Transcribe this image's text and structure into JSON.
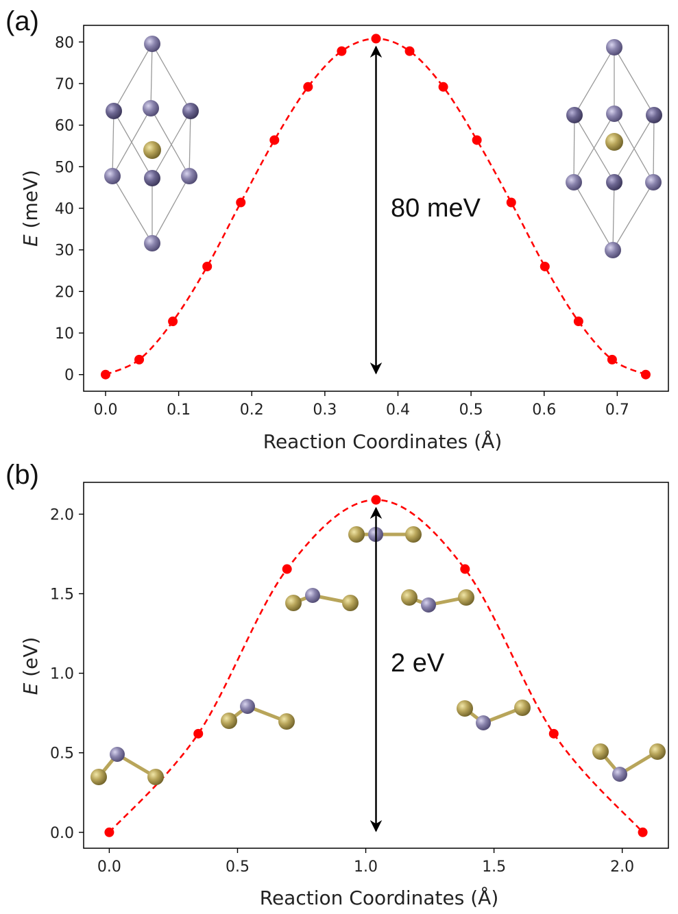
{
  "chart_data": [
    {
      "type": "line",
      "panel_label": "(a)",
      "xlabel": "Reaction Coordinates (Å)",
      "ylabel_italic": "E",
      "ylabel_rest": " (meV)",
      "xlim": [
        -0.03,
        0.77
      ],
      "ylim": [
        -4,
        84
      ],
      "xticks": [
        0.0,
        0.1,
        0.2,
        0.3,
        0.4,
        0.5,
        0.6,
        0.7
      ],
      "xtick_labels": [
        "0.0",
        "0.1",
        "0.2",
        "0.3",
        "0.4",
        "0.5",
        "0.6",
        "0.7"
      ],
      "yticks": [
        0,
        10,
        20,
        30,
        40,
        50,
        60,
        70,
        80
      ],
      "ytick_labels": [
        "0",
        "10",
        "20",
        "30",
        "40",
        "50",
        "60",
        "70",
        "80"
      ],
      "series": [
        {
          "color": "#ff0000",
          "style": "dashed-curve-with-markers",
          "x": [
            0.0,
            0.046,
            0.092,
            0.139,
            0.185,
            0.231,
            0.277,
            0.323,
            0.37,
            0.416,
            0.462,
            0.508,
            0.555,
            0.601,
            0.647,
            0.693,
            0.739
          ],
          "y": [
            0,
            3.6,
            12.8,
            26,
            41.4,
            56.4,
            69.2,
            77.8,
            80.8,
            77.8,
            69.2,
            56.4,
            41.4,
            26,
            12.8,
            3.6,
            0
          ]
        }
      ],
      "annotation": {
        "text": "80 meV",
        "arrow_x": 0.37,
        "arrow_from": 0,
        "arrow_to": 80.8
      }
    },
    {
      "type": "line",
      "panel_label": "(b)",
      "xlabel": "Reaction Coordinates (Å)",
      "ylabel_italic": "E",
      "ylabel_rest": " (eV)",
      "xlim": [
        -0.1,
        2.18
      ],
      "ylim": [
        -0.1,
        2.2
      ],
      "xticks": [
        0.0,
        0.5,
        1.0,
        1.5,
        2.0
      ],
      "xtick_labels": [
        "0.0",
        "0.5",
        "1.0",
        "1.5",
        "2.0"
      ],
      "yticks": [
        0.0,
        0.5,
        1.0,
        1.5,
        2.0
      ],
      "ytick_labels": [
        "0.0",
        "0.5",
        "1.0",
        "1.5",
        "2.0"
      ],
      "series": [
        {
          "color": "#ff0000",
          "style": "dashed-curve-with-markers",
          "x": [
            0.0,
            0.347,
            0.693,
            1.04,
            1.387,
            1.733,
            2.08
          ],
          "y": [
            0.0,
            0.62,
            1.655,
            2.09,
            1.655,
            0.62,
            0.0
          ]
        }
      ],
      "annotation": {
        "text": "2 eV",
        "arrow_x": 1.04,
        "arrow_from": 0,
        "arrow_to": 2.09
      }
    }
  ],
  "colors": {
    "curve": "#ff0000",
    "atom_purple": "#8a84ad",
    "atom_purple_dark": "#6d6792",
    "atom_gold": "#b8a55a",
    "bond": "#aaaaaa"
  }
}
